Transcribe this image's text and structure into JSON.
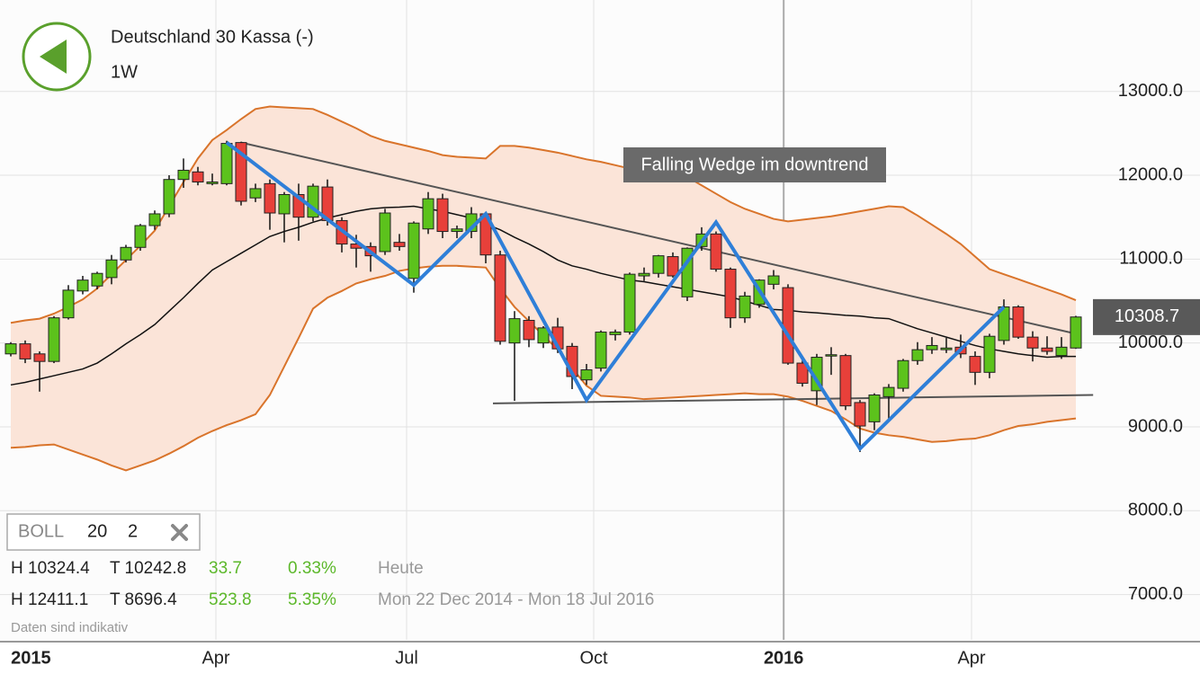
{
  "header": {
    "title": "Deutschland 30 Kassa (-)",
    "interval": "1W"
  },
  "chart_data": {
    "type": "candlestick",
    "categories": [
      null,
      null,
      null,
      null,
      null,
      null,
      null,
      null,
      null,
      null,
      null,
      null,
      null,
      null,
      null,
      null,
      null,
      null,
      null,
      null,
      null,
      null,
      null,
      null,
      null,
      null,
      null,
      null,
      null,
      null,
      null,
      null,
      null,
      null,
      null,
      null,
      null,
      null,
      null,
      null,
      null,
      null,
      null,
      null,
      null,
      null,
      null,
      null,
      null,
      null,
      null,
      null,
      null,
      null,
      null,
      null,
      null,
      null,
      null,
      null,
      null,
      null,
      null,
      null,
      null,
      null,
      null,
      null,
      null,
      null,
      null,
      null,
      null,
      null,
      null
    ],
    "open": [
      9870,
      9990,
      9870,
      9780,
      10300,
      10620,
      10680,
      10780,
      10990,
      11140,
      11400,
      11540,
      11950,
      12040,
      11900,
      11900,
      12390,
      11730,
      11900,
      11540,
      11770,
      11500,
      11860,
      11460,
      11180,
      11150,
      11090,
      11200,
      10770,
      11360,
      11720,
      11330,
      11330,
      11540,
      11050,
      10000,
      10270,
      10000,
      10190,
      9960,
      9560,
      9700,
      10100,
      10130,
      10800,
      10830,
      11030,
      10550,
      11150,
      11300,
      10880,
      10300,
      10460,
      10700,
      10660,
      9760,
      9430,
      9850,
      9850,
      9290,
      9060,
      9360,
      9460,
      9790,
      9920,
      9920,
      9950,
      9840,
      9650,
      10030,
      10430,
      10070,
      9940,
      9850,
      9940
    ],
    "high": [
      10010,
      10030,
      9900,
      10320,
      10690,
      10800,
      10850,
      11050,
      11170,
      11420,
      11580,
      12000,
      12200,
      12100,
      12020,
      12411,
      12400,
      11900,
      11950,
      11800,
      11900,
      11900,
      11950,
      11500,
      11290,
      11200,
      11600,
      11300,
      11450,
      11800,
      11780,
      11400,
      11620,
      11560,
      11100,
      10380,
      10320,
      10200,
      10300,
      10000,
      9750,
      10150,
      10160,
      10840,
      10900,
      11050,
      11080,
      11140,
      11380,
      11330,
      10900,
      10610,
      10760,
      10870,
      10700,
      9840,
      9870,
      9950,
      9870,
      9320,
      9400,
      9510,
      9810,
      10010,
      10070,
      10060,
      10100,
      9900,
      10110,
      10520,
      10450,
      10140,
      10080,
      10070,
      10324
    ],
    "low": [
      9840,
      9760,
      9420,
      9760,
      10280,
      10580,
      10640,
      10700,
      10960,
      11100,
      11350,
      11500,
      11850,
      11880,
      11880,
      11880,
      11640,
      11680,
      11350,
      11200,
      11220,
      11450,
      11400,
      11080,
      10900,
      10850,
      11050,
      11100,
      10600,
      11300,
      11250,
      11250,
      11250,
      10950,
      9980,
      9310,
      9950,
      9940,
      9880,
      9450,
      9500,
      9660,
      10030,
      10100,
      10740,
      10780,
      10780,
      10500,
      11100,
      10850,
      10180,
      10240,
      10420,
      10640,
      9740,
      9480,
      9260,
      9620,
      9200,
      8700,
      8960,
      9100,
      9420,
      9740,
      9870,
      9880,
      9820,
      9500,
      9580,
      9980,
      10050,
      9780,
      9860,
      9810,
      9930
    ],
    "close": [
      9990,
      9810,
      9780,
      10300,
      10630,
      10750,
      10830,
      10990,
      11140,
      11400,
      11540,
      11950,
      12060,
      11920,
      11920,
      12380,
      11690,
      11840,
      11550,
      11770,
      11500,
      11870,
      11460,
      11180,
      11130,
      11040,
      11550,
      11150,
      11430,
      11720,
      11330,
      11360,
      11540,
      11050,
      10020,
      10290,
      10040,
      10180,
      9930,
      9600,
      9680,
      10130,
      10130,
      10820,
      10830,
      11040,
      10800,
      11130,
      11300,
      10880,
      10300,
      10560,
      10750,
      10800,
      9760,
      9520,
      9830,
      9860,
      9250,
      9010,
      9380,
      9470,
      9790,
      9920,
      9970,
      9940,
      9870,
      9650,
      10080,
      10430,
      10070,
      9940,
      9900,
      9950,
      10310
    ],
    "up_color": "#5cc21c",
    "down_color": "#e8403a",
    "bollinger": {
      "label": "BOLL",
      "period": 20,
      "deviations": 2,
      "color": "#d9742b",
      "fill": "#fbe4d8",
      "upper": [
        10240,
        10270,
        10290,
        10350,
        10430,
        10520,
        10650,
        10820,
        10990,
        11160,
        11340,
        11630,
        11920,
        12200,
        12420,
        12540,
        12670,
        12790,
        12820,
        12810,
        12800,
        12790,
        12720,
        12640,
        12560,
        12470,
        12410,
        12370,
        12330,
        12290,
        12240,
        12220,
        12210,
        12200,
        12350,
        12350,
        12330,
        12300,
        12270,
        12230,
        12190,
        12160,
        12120,
        12080,
        12060,
        12040,
        12020,
        11980,
        11880,
        11780,
        11680,
        11600,
        11540,
        11480,
        11450,
        11470,
        11490,
        11510,
        11540,
        11570,
        11600,
        11630,
        11620,
        11520,
        11410,
        11300,
        11180,
        11030,
        10880,
        10820,
        10760,
        10700,
        10640,
        10580,
        10510
      ],
      "middle": [
        9500,
        9530,
        9570,
        9610,
        9650,
        9690,
        9760,
        9870,
        9990,
        10100,
        10220,
        10380,
        10540,
        10710,
        10870,
        10970,
        11070,
        11170,
        11270,
        11330,
        11380,
        11440,
        11490,
        11530,
        11570,
        11600,
        11615,
        11620,
        11630,
        11600,
        11570,
        11530,
        11490,
        11420,
        11350,
        11260,
        11180,
        11090,
        10990,
        10920,
        10880,
        10830,
        10790,
        10750,
        10730,
        10700,
        10670,
        10640,
        10610,
        10580,
        10550,
        10500,
        10450,
        10400,
        10390,
        10370,
        10360,
        10345,
        10330,
        10320,
        10300,
        10290,
        10230,
        10170,
        10120,
        10070,
        10020,
        9970,
        9930,
        9900,
        9870,
        9850,
        9830,
        9840,
        9840
      ],
      "lower": [
        8750,
        8760,
        8780,
        8790,
        8730,
        8670,
        8610,
        8540,
        8480,
        8540,
        8600,
        8680,
        8770,
        8870,
        8950,
        9020,
        9080,
        9150,
        9380,
        9720,
        10060,
        10410,
        10540,
        10620,
        10710,
        10760,
        10800,
        10860,
        10890,
        10910,
        10920,
        10920,
        10910,
        10900,
        10650,
        10430,
        10260,
        10090,
        9920,
        9700,
        9490,
        9370,
        9360,
        9350,
        9330,
        9340,
        9350,
        9360,
        9370,
        9380,
        9390,
        9400,
        9390,
        9390,
        9360,
        9310,
        9250,
        9190,
        9090,
        8980,
        8930,
        8900,
        8880,
        8850,
        8820,
        8830,
        8850,
        8860,
        8900,
        8960,
        9010,
        9030,
        9060,
        9080,
        9100
      ]
    },
    "zigzag": {
      "color": "#2f7fd8",
      "x": [
        15,
        28,
        33,
        40,
        49,
        59,
        69
      ],
      "values": [
        12390,
        10690,
        11540,
        9320,
        11440,
        8740,
        10430
      ]
    },
    "trendlines": [
      {
        "color": "#555555",
        "x": [
          16,
          74
        ],
        "values": [
          12390,
          10110
        ]
      },
      {
        "color": "#555555",
        "x": [
          33.5,
          75.2
        ],
        "values": [
          9280,
          9380
        ]
      }
    ],
    "annotation": "Falling Wedge im downtrend",
    "last_price": 10308.7,
    "ylim": [
      6460,
      14090
    ],
    "yticks": [
      {
        "value": 7000,
        "label": "7000.0"
      },
      {
        "value": 8000,
        "label": "8000.0"
      },
      {
        "value": 9000,
        "label": "9000.0"
      },
      {
        "value": 10000,
        "label": "10000.0"
      },
      {
        "value": 11000,
        "label": "11000.0"
      },
      {
        "value": 12000,
        "label": "12000.0"
      },
      {
        "value": 13000,
        "label": "13000.0"
      }
    ],
    "xticks": [
      {
        "value": 1.4,
        "label": "2015"
      },
      {
        "value": 14.25,
        "label": "Apr"
      },
      {
        "value": 27.5,
        "label": "Jul"
      },
      {
        "value": 40.5,
        "label": "Oct"
      },
      {
        "value": 53.7,
        "label": "2016"
      },
      {
        "value": 66.75,
        "label": "Apr"
      }
    ],
    "grid": true
  },
  "stats": [
    [
      "H 10324.4",
      "T 10242.8",
      "33.7",
      "0.33%",
      "Heute"
    ],
    [
      "H 12411.1",
      "T 8696.4",
      "523.8",
      "5.35%",
      "Mon 22 Dec 2014 - Mon 18 Jul 2016"
    ]
  ],
  "footer": "Daten sind indikativ"
}
